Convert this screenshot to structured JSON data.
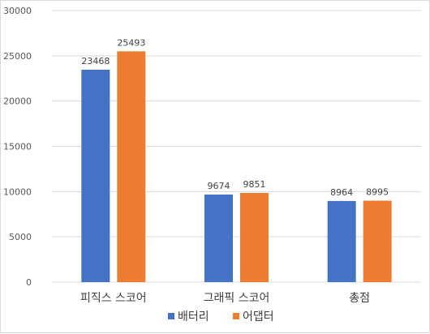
{
  "chart_data": {
    "type": "bar",
    "categories": [
      "피직스 스코어",
      "그래픽 스코어",
      "총점"
    ],
    "series": [
      {
        "name": "배터리",
        "values": [
          23468,
          9674,
          8964
        ],
        "color": "#4472C4"
      },
      {
        "name": "어댑터",
        "values": [
          25493,
          9851,
          8995
        ],
        "color": "#ED7D31"
      }
    ],
    "ylim": [
      0,
      30000
    ],
    "yticks": [
      0,
      5000,
      10000,
      15000,
      20000,
      25000,
      30000
    ],
    "grid": true,
    "legend": "bottom",
    "data_labels": true,
    "gridline_color": "#d9d9d9"
  }
}
